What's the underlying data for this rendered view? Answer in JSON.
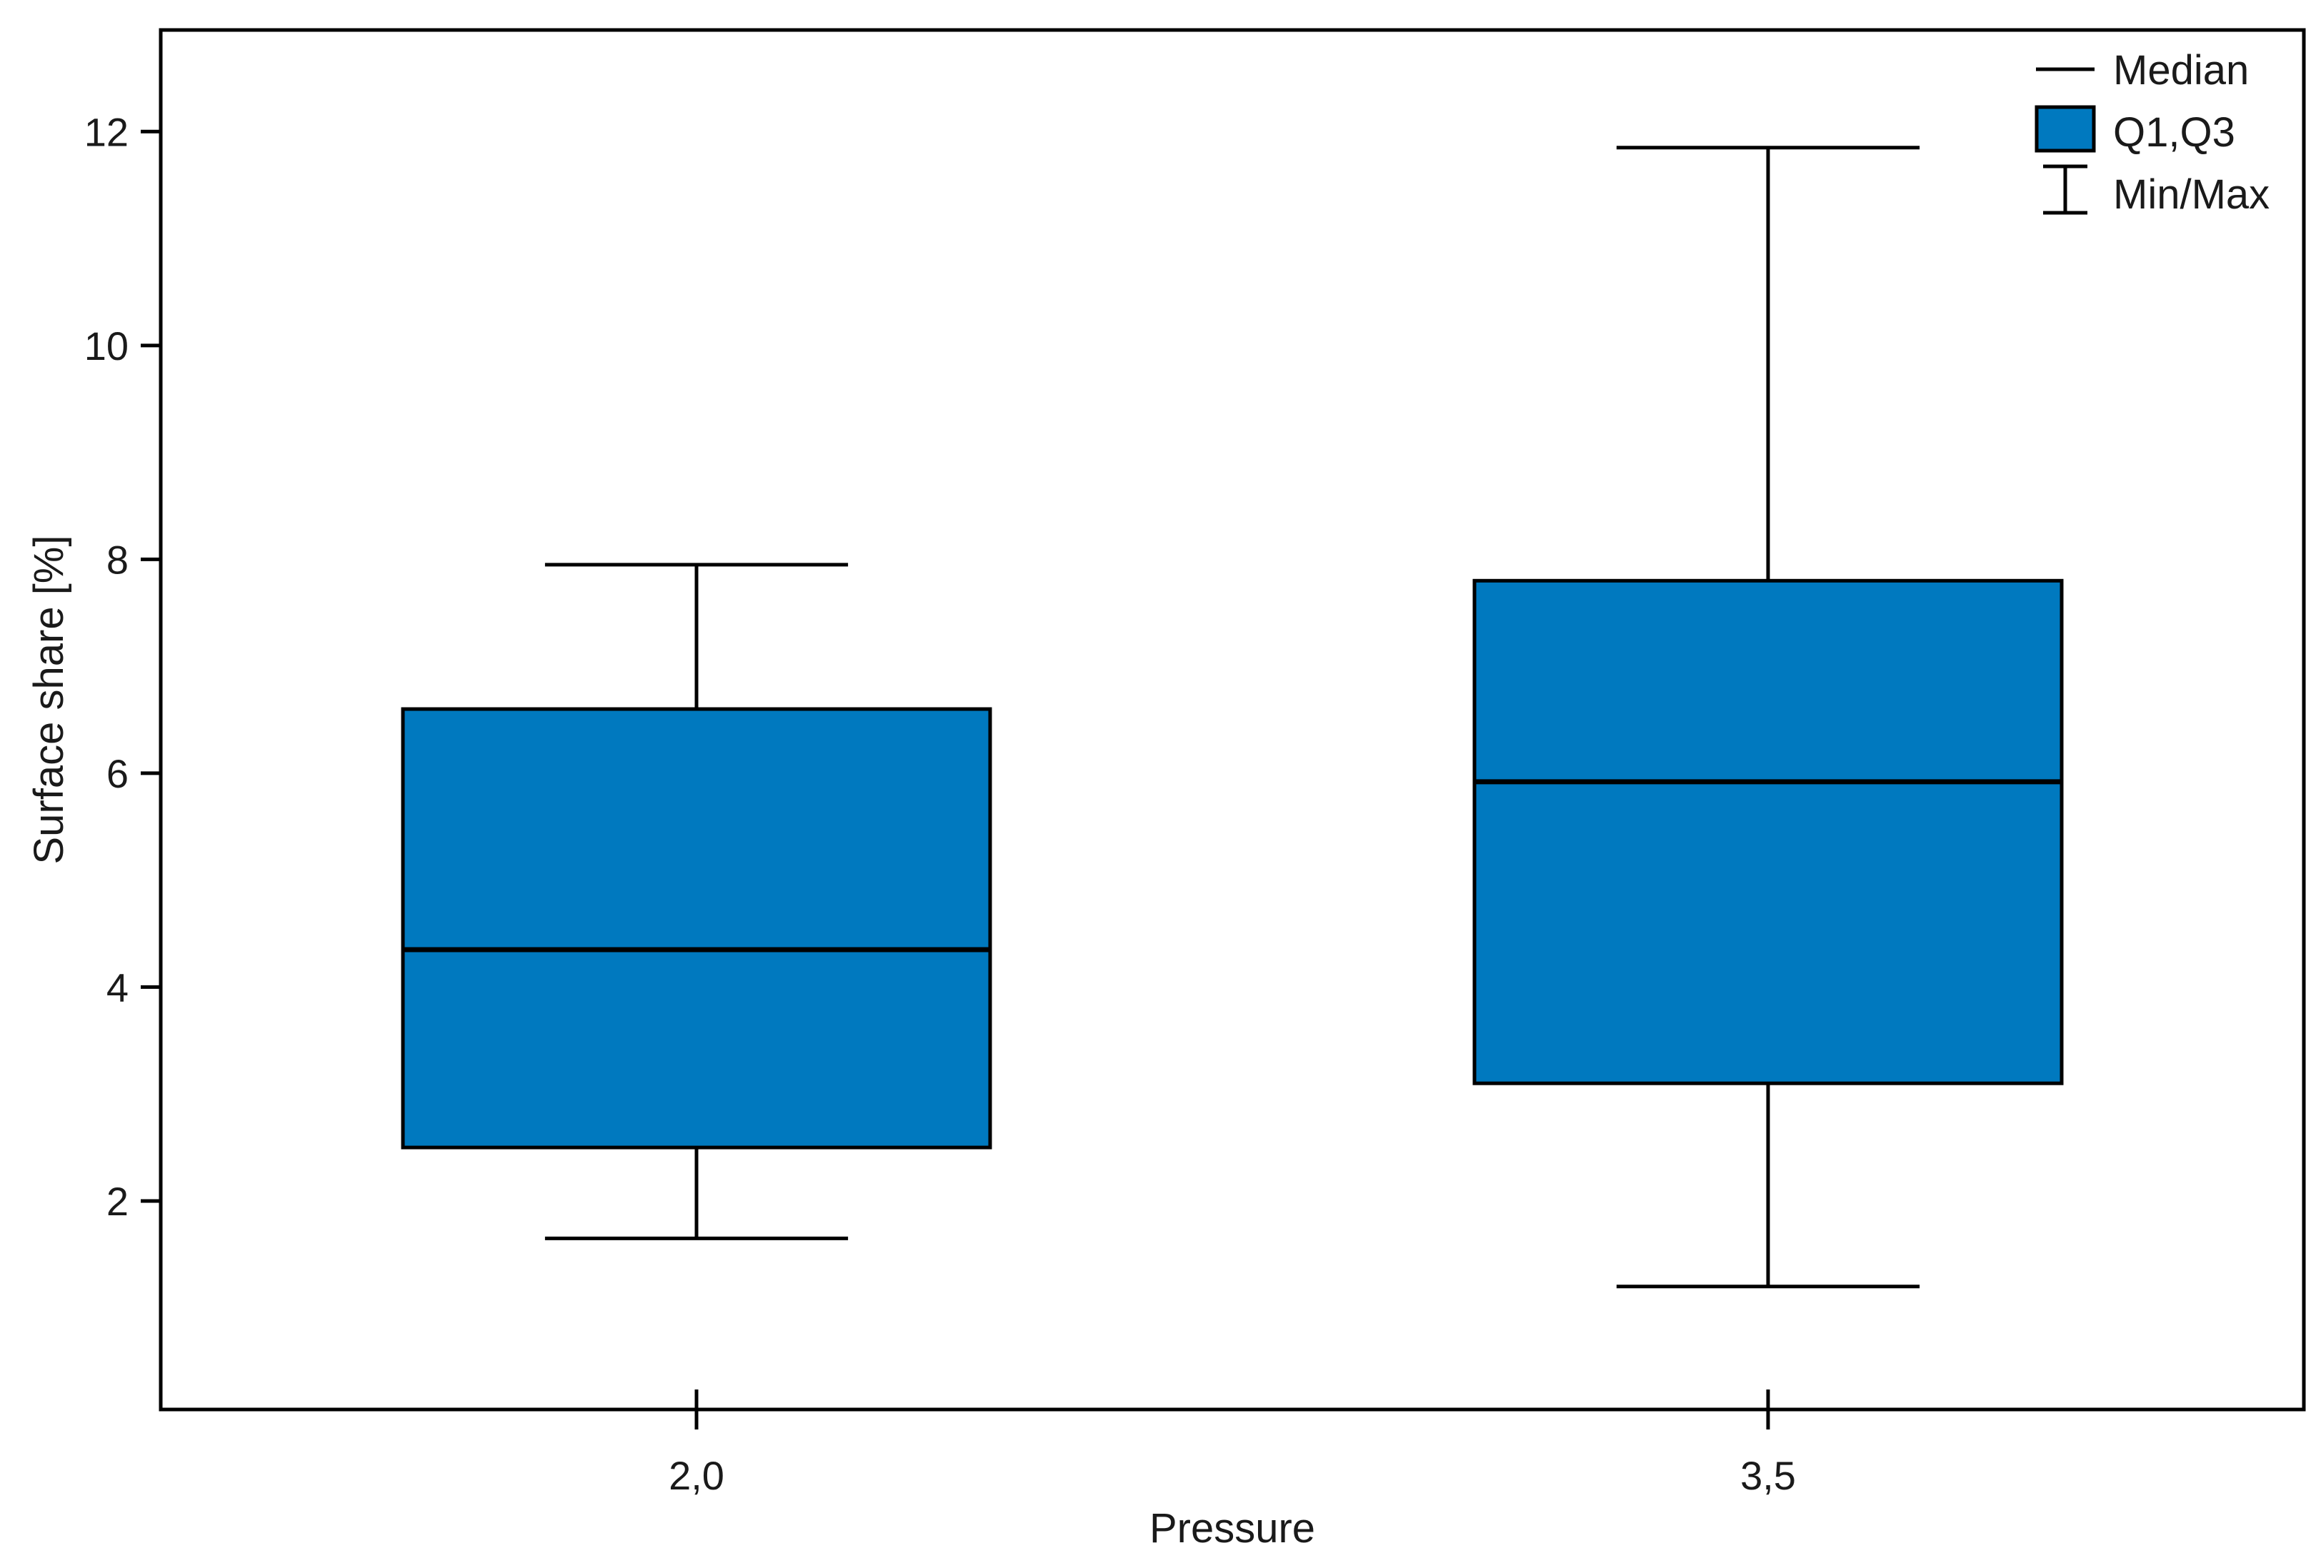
{
  "chart_data": {
    "type": "boxplot",
    "xlabel": "Pressure",
    "ylabel": "Surface share [%]",
    "categories": [
      "2,0",
      "3,5"
    ],
    "boxes": [
      {
        "category": "2,0",
        "min": 1.65,
        "q1": 2.5,
        "median": 4.35,
        "q3": 6.6,
        "max": 7.95
      },
      {
        "category": "3,5",
        "min": 1.2,
        "q1": 3.1,
        "median": 5.92,
        "q3": 7.8,
        "max": 11.85
      }
    ],
    "yticks": [
      2,
      4,
      6,
      8,
      10,
      12
    ],
    "ytick_labels": [
      "2",
      "4",
      "6",
      "8",
      "10",
      "12"
    ],
    "ylim": [
      0.05,
      12.95
    ],
    "legend": {
      "position": "top-right",
      "median_label": "Median",
      "box_label": "Q1,Q3",
      "whisker_label": "Min/Max"
    },
    "colors": {
      "box_fill": "#0079BF",
      "line": "#000000"
    },
    "grid": false
  }
}
